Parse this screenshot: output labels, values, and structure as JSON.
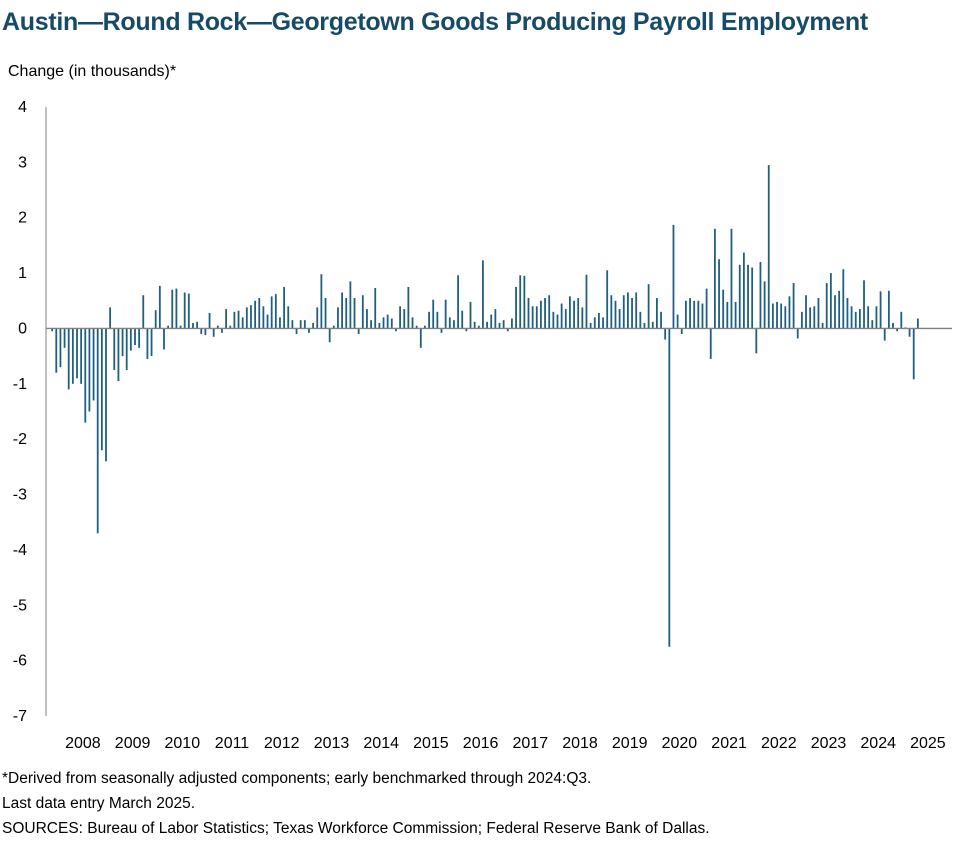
{
  "title": "Austin—Round Rock—Georgetown Goods Producing Payroll Employment",
  "footnotes": {
    "note": "*Derived from seasonally adjusted components; early benchmarked through 2024:Q3.",
    "last_entry": "Last data entry March 2025.",
    "sources": "SOURCES: Bureau of Labor Statistics; Texas Workforce Commission; Federal Reserve Bank of Dallas."
  },
  "colors": {
    "bar": "#1f5f7f",
    "axis": "#808080",
    "title": "#164a66"
  },
  "chart_data": {
    "type": "bar",
    "title": "Austin—Round Rock—Georgetown Goods Producing Payroll Employment",
    "ylabel": "Change (in thousands)*",
    "xlabel": "",
    "ylim": [
      -7,
      4
    ],
    "yticks": [
      "4",
      "3",
      "2",
      "1",
      "0",
      "-1",
      "-2",
      "-3",
      "-4",
      "-5",
      "-6",
      "-7"
    ],
    "xticks": [
      "2008",
      "2009",
      "2010",
      "2011",
      "2012",
      "2013",
      "2014",
      "2015",
      "2016",
      "2017",
      "2018",
      "2019",
      "2020",
      "2021",
      "2022",
      "2023",
      "2024",
      "2025"
    ],
    "grid": false,
    "frequency": "monthly",
    "start": "2008-01",
    "end": "2025-03",
    "series": [
      {
        "values": [
          -0.05,
          -0.8,
          -0.7,
          -0.35,
          -1.1,
          -1.0,
          -0.9,
          -1.0,
          -1.7,
          -1.5,
          -1.3,
          -3.7,
          -2.2,
          -2.4,
          0.38,
          -0.75,
          -0.95,
          -0.5,
          -0.75,
          -0.4,
          -0.3,
          -0.35,
          0.6,
          -0.55,
          -0.5,
          0.33,
          0.77,
          -0.38,
          0.05,
          0.7,
          0.72,
          0.05,
          0.65,
          0.63,
          0.1,
          0.12,
          -0.1,
          -0.12,
          0.28,
          -0.15,
          0.05,
          -0.08,
          0.35,
          0.05,
          0.3,
          0.32,
          0.2,
          0.38,
          0.42,
          0.5,
          0.55,
          0.4,
          0.25,
          0.58,
          0.62,
          0.2,
          0.75,
          0.4,
          0.15,
          -0.1,
          0.15,
          0.15,
          -0.08,
          0.1,
          0.38,
          0.98,
          0.55,
          -0.25,
          0.05,
          0.38,
          0.65,
          0.55,
          0.85,
          0.55,
          -0.1,
          0.6,
          0.35,
          0.15,
          0.73,
          0.1,
          0.2,
          0.25,
          0.18,
          -0.05,
          0.4,
          0.35,
          0.75,
          0.2,
          0.05,
          -0.35,
          0.05,
          0.3,
          0.52,
          0.3,
          -0.08,
          0.52,
          0.2,
          0.15,
          0.96,
          0.32,
          -0.05,
          0.48,
          0.12,
          0.05,
          1.23,
          0.12,
          0.25,
          0.35,
          0.1,
          0.15,
          -0.05,
          0.18,
          0.75,
          0.96,
          0.95,
          0.55,
          0.4,
          0.4,
          0.5,
          0.55,
          0.6,
          0.3,
          0.25,
          0.45,
          0.35,
          0.58,
          0.5,
          0.55,
          0.38,
          0.97,
          0.1,
          0.2,
          0.28,
          0.2,
          1.05,
          0.6,
          0.5,
          0.35,
          0.6,
          0.65,
          0.55,
          0.65,
          0.3,
          0.1,
          0.8,
          0.12,
          0.55,
          0.3,
          -0.2,
          -5.75,
          1.87,
          0.25,
          -0.1,
          0.5,
          0.55,
          0.5,
          0.5,
          0.45,
          0.72,
          -0.55,
          1.8,
          1.25,
          0.7,
          0.48,
          1.8,
          0.48,
          1.15,
          1.37,
          1.15,
          1.1,
          -0.45,
          1.2,
          0.85,
          2.95,
          0.45,
          0.48,
          0.45,
          0.4,
          0.58,
          0.82,
          -0.18,
          0.3,
          0.6,
          0.38,
          0.4,
          0.55,
          0.1,
          0.82,
          1.0,
          0.6,
          0.68,
          1.07,
          0.55,
          0.4,
          0.3,
          0.35,
          0.87,
          0.4,
          0.15,
          0.4,
          0.67,
          -0.22,
          0.68,
          0.1,
          -0.05,
          0.3,
          0.02,
          -0.15,
          -0.92,
          0.18
        ]
      }
    ]
  }
}
